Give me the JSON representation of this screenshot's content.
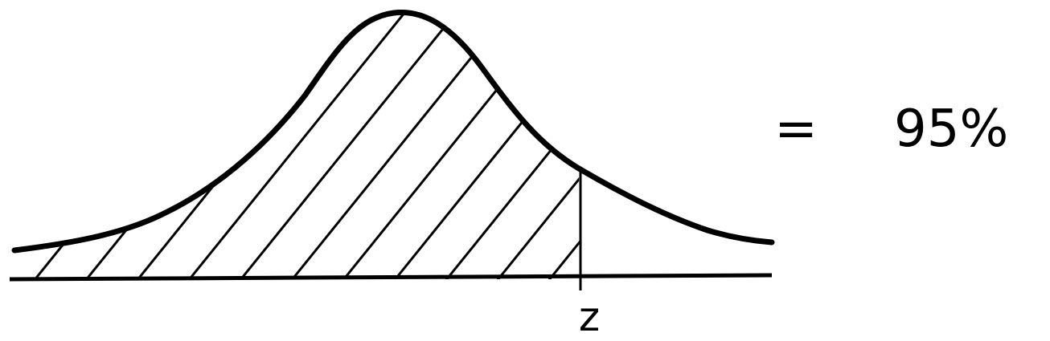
{
  "diagram": {
    "marker_label": "z",
    "equals_sign": "=",
    "shaded_area": "95%",
    "ink_color": "#000000",
    "background_color": "#ffffff"
  }
}
